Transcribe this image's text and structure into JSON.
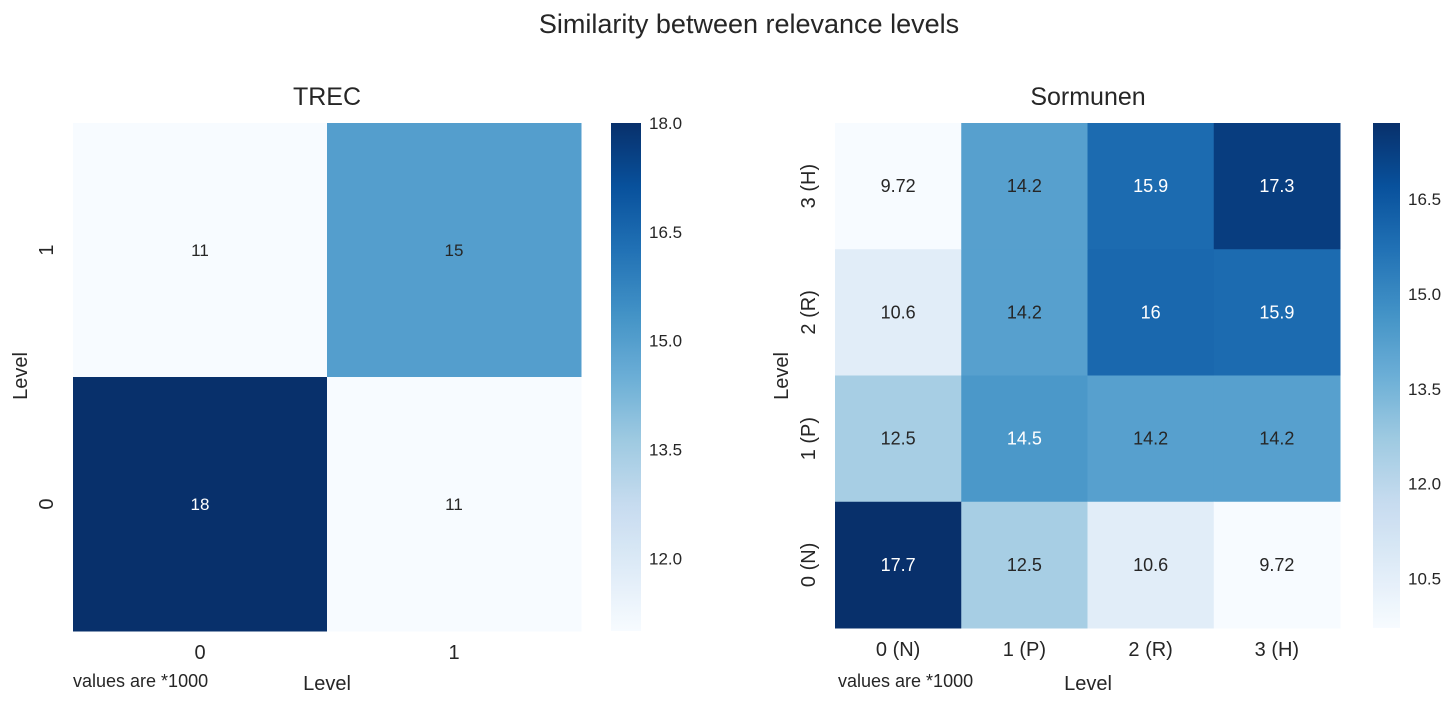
{
  "figure_title": "Similarity between relevance levels",
  "chart_data": [
    {
      "type": "heatmap",
      "title": "TREC",
      "xlabel": "Level",
      "ylabel": "Level",
      "note": "values are *1000",
      "x_categories": [
        "0",
        "1"
      ],
      "y_categories": [
        "0",
        "1"
      ],
      "values": [
        {
          "x": "0",
          "y": "1",
          "value": 11,
          "label": "11"
        },
        {
          "x": "1",
          "y": "1",
          "value": 15,
          "label": "15"
        },
        {
          "x": "0",
          "y": "0",
          "value": 18,
          "label": "18"
        },
        {
          "x": "1",
          "y": "0",
          "value": 11,
          "label": "11"
        }
      ],
      "colormap": "Blues",
      "color_range": [
        11,
        18
      ],
      "colorbar_ticks": [
        {
          "value": 12.0,
          "label": "12.0"
        },
        {
          "value": 13.5,
          "label": "13.5"
        },
        {
          "value": 15.0,
          "label": "15.0"
        },
        {
          "value": 16.5,
          "label": "16.5"
        },
        {
          "value": 18.0,
          "label": "18.0"
        }
      ]
    },
    {
      "type": "heatmap",
      "title": "Sormunen",
      "xlabel": "Level",
      "ylabel": "Level",
      "note": "values are *1000",
      "x_categories": [
        "0 (N)",
        "1 (P)",
        "2 (R)",
        "3 (H)"
      ],
      "y_categories": [
        "0 (N)",
        "1 (P)",
        "2 (R)",
        "3 (H)"
      ],
      "values": [
        {
          "x": "0 (N)",
          "y": "3 (H)",
          "value": 9.72,
          "label": "9.72"
        },
        {
          "x": "1 (P)",
          "y": "3 (H)",
          "value": 14.2,
          "label": "14.2"
        },
        {
          "x": "2 (R)",
          "y": "3 (H)",
          "value": 15.9,
          "label": "15.9"
        },
        {
          "x": "3 (H)",
          "y": "3 (H)",
          "value": 17.3,
          "label": "17.3"
        },
        {
          "x": "0 (N)",
          "y": "2 (R)",
          "value": 10.6,
          "label": "10.6"
        },
        {
          "x": "1 (P)",
          "y": "2 (R)",
          "value": 14.2,
          "label": "14.2"
        },
        {
          "x": "2 (R)",
          "y": "2 (R)",
          "value": 16,
          "label": "16"
        },
        {
          "x": "3 (H)",
          "y": "2 (R)",
          "value": 15.9,
          "label": "15.9"
        },
        {
          "x": "0 (N)",
          "y": "1 (P)",
          "value": 12.5,
          "label": "12.5"
        },
        {
          "x": "1 (P)",
          "y": "1 (P)",
          "value": 14.5,
          "label": "14.5"
        },
        {
          "x": "2 (R)",
          "y": "1 (P)",
          "value": 14.2,
          "label": "14.2"
        },
        {
          "x": "3 (H)",
          "y": "1 (P)",
          "value": 14.2,
          "label": "14.2"
        },
        {
          "x": "0 (N)",
          "y": "0 (N)",
          "value": 17.7,
          "label": "17.7"
        },
        {
          "x": "1 (P)",
          "y": "0 (N)",
          "value": 12.5,
          "label": "12.5"
        },
        {
          "x": "2 (R)",
          "y": "0 (N)",
          "value": 10.6,
          "label": "10.6"
        },
        {
          "x": "3 (H)",
          "y": "0 (N)",
          "value": 9.72,
          "label": "9.72"
        }
      ],
      "colormap": "Blues",
      "color_range": [
        9.72,
        17.7
      ],
      "colorbar_ticks": [
        {
          "value": 10.5,
          "label": "10.5"
        },
        {
          "value": 12.0,
          "label": "12.0"
        },
        {
          "value": 13.5,
          "label": "13.5"
        },
        {
          "value": 15.0,
          "label": "15.0"
        },
        {
          "value": 16.5,
          "label": "16.5"
        }
      ]
    }
  ]
}
